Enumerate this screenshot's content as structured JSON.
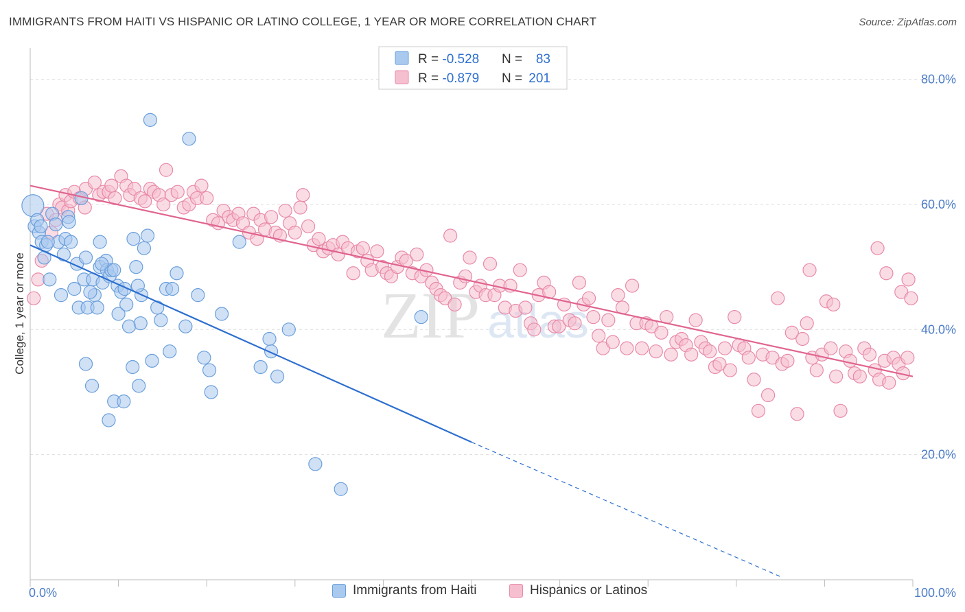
{
  "title": "IMMIGRANTS FROM HAITI VS HISPANIC OR LATINO COLLEGE, 1 YEAR OR MORE CORRELATION CHART",
  "source": "Source: ZipAtlas.com",
  "watermark": {
    "zip": "ZIP",
    "atlas": "atlas"
  },
  "colors": {
    "blue_fill": "#a9c9ee",
    "blue_stroke": "#6a9fdb",
    "blue_line": "#2d6fcf",
    "pink_fill": "#f6bfd0",
    "pink_stroke": "#e88aa8",
    "pink_line": "#e0648f",
    "tick_text": "#4a7bc8",
    "grid": "#dddddd"
  },
  "legend_box": {
    "rows": [
      {
        "r_label": "R = ",
        "r_value": "-0.528",
        "n_label": "N = ",
        "n_value": "83"
      },
      {
        "r_label": "R = ",
        "r_value": "-0.879",
        "n_label": "N = ",
        "n_value": "201"
      }
    ]
  },
  "chart_data": {
    "type": "scatter",
    "xlabel": "",
    "ylabel": "College, 1 year or more",
    "xlim": [
      0,
      100
    ],
    "ylim": [
      0,
      85
    ],
    "x_tick_labels": [
      "0.0%",
      "100.0%"
    ],
    "y_ticks": [
      20,
      40,
      60,
      80
    ],
    "y_tick_labels": [
      "20.0%",
      "40.0%",
      "60.0%",
      "80.0%"
    ],
    "grid": "horizontal dashed",
    "legend": "bottom-center",
    "series": [
      {
        "name": "Immigrants from Haiti",
        "color": "blue",
        "R": -0.528,
        "N": 83,
        "trend": {
          "x0": 0,
          "y0": 53.5,
          "x1": 50,
          "y1": 22.0,
          "dashed_to_x": 85,
          "dashed_to_y": 0.5
        },
        "points": [
          [
            0.3,
            59.8
          ],
          [
            0.5,
            56.5
          ],
          [
            0.8,
            57.5
          ],
          [
            1.0,
            55.5
          ],
          [
            1.3,
            54.0
          ],
          [
            1.6,
            51.5
          ],
          [
            1.8,
            53.5
          ],
          [
            2.2,
            48.0
          ],
          [
            2.5,
            58.5
          ],
          [
            2.9,
            56.8
          ],
          [
            3.2,
            54.0
          ],
          [
            3.5,
            45.5
          ],
          [
            3.8,
            52.0
          ],
          [
            4.0,
            54.5
          ],
          [
            4.3,
            58.0
          ],
          [
            4.4,
            57.2
          ],
          [
            4.6,
            54.0
          ],
          [
            5.0,
            46.5
          ],
          [
            5.3,
            50.5
          ],
          [
            5.5,
            43.5
          ],
          [
            5.8,
            61.0
          ],
          [
            6.1,
            48.0
          ],
          [
            6.3,
            51.5
          ],
          [
            6.5,
            43.5
          ],
          [
            6.3,
            34.5
          ],
          [
            7.0,
            31.0
          ],
          [
            7.1,
            48.0
          ],
          [
            7.3,
            45.5
          ],
          [
            7.6,
            43.5
          ],
          [
            7.9,
            50.0
          ],
          [
            7.9,
            54.0
          ],
          [
            8.2,
            47.5
          ],
          [
            8.6,
            51.0
          ],
          [
            8.7,
            49.5
          ],
          [
            8.9,
            25.5
          ],
          [
            9.0,
            48.5
          ],
          [
            9.2,
            49.5
          ],
          [
            9.5,
            49.5
          ],
          [
            9.5,
            28.5
          ],
          [
            9.9,
            47.0
          ],
          [
            10.0,
            42.5
          ],
          [
            10.3,
            46.0
          ],
          [
            10.6,
            28.5
          ],
          [
            10.7,
            46.5
          ],
          [
            10.9,
            44.0
          ],
          [
            11.2,
            40.5
          ],
          [
            11.6,
            34.0
          ],
          [
            11.7,
            54.5
          ],
          [
            12.0,
            50.0
          ],
          [
            12.3,
            31.0
          ],
          [
            12.5,
            41.0
          ],
          [
            12.6,
            45.5
          ],
          [
            12.9,
            53.0
          ],
          [
            13.3,
            55.0
          ],
          [
            13.6,
            73.5
          ],
          [
            13.8,
            35.0
          ],
          [
            14.4,
            43.5
          ],
          [
            14.8,
            41.5
          ],
          [
            15.4,
            46.5
          ],
          [
            15.8,
            36.5
          ],
          [
            16.1,
            46.5
          ],
          [
            16.6,
            49.0
          ],
          [
            17.6,
            40.5
          ],
          [
            18.0,
            70.5
          ],
          [
            19.0,
            45.5
          ],
          [
            19.7,
            35.5
          ],
          [
            20.3,
            33.5
          ],
          [
            20.5,
            30.0
          ],
          [
            21.7,
            42.5
          ],
          [
            23.7,
            54.0
          ],
          [
            27.1,
            38.5
          ],
          [
            27.3,
            36.5
          ],
          [
            26.1,
            34.0
          ],
          [
            28.0,
            32.5
          ],
          [
            29.3,
            40.0
          ],
          [
            32.3,
            18.5
          ],
          [
            35.2,
            14.5
          ],
          [
            44.3,
            42.0
          ],
          [
            1.2,
            56.5
          ],
          [
            2.0,
            54.0
          ],
          [
            6.8,
            46.0
          ],
          [
            8.1,
            50.5
          ],
          [
            12.2,
            47.0
          ]
        ]
      },
      {
        "name": "Hispanics or Latinos",
        "color": "pink",
        "R": -0.879,
        "N": 201,
        "trend": {
          "x0": 0,
          "y0": 63.0,
          "x1": 100,
          "y1": 32.5
        },
        "points": [
          [
            0.4,
            45.0
          ],
          [
            0.9,
            48.0
          ],
          [
            1.3,
            51.0
          ],
          [
            1.9,
            58.5
          ],
          [
            2.4,
            55.5
          ],
          [
            2.9,
            57.5
          ],
          [
            3.3,
            60.0
          ],
          [
            3.6,
            59.5
          ],
          [
            4.0,
            61.5
          ],
          [
            4.3,
            59.0
          ],
          [
            4.6,
            60.5
          ],
          [
            5.0,
            62.0
          ],
          [
            5.6,
            61.0
          ],
          [
            6.2,
            59.5
          ],
          [
            6.3,
            62.5
          ],
          [
            7.3,
            63.5
          ],
          [
            7.8,
            61.5
          ],
          [
            8.3,
            62.0
          ],
          [
            8.9,
            62.0
          ],
          [
            9.2,
            63.0
          ],
          [
            9.6,
            61.0
          ],
          [
            10.3,
            64.5
          ],
          [
            10.9,
            63.0
          ],
          [
            11.3,
            61.5
          ],
          [
            11.8,
            62.5
          ],
          [
            12.5,
            61.0
          ],
          [
            13.0,
            60.5
          ],
          [
            13.6,
            62.5
          ],
          [
            14.0,
            62.0
          ],
          [
            14.6,
            61.5
          ],
          [
            15.1,
            60.0
          ],
          [
            15.4,
            65.5
          ],
          [
            16.0,
            61.5
          ],
          [
            16.7,
            62.0
          ],
          [
            17.4,
            59.5
          ],
          [
            18.0,
            60.0
          ],
          [
            18.5,
            62.0
          ],
          [
            18.9,
            61.0
          ],
          [
            19.4,
            63.0
          ],
          [
            20.0,
            61.0
          ],
          [
            20.7,
            57.5
          ],
          [
            21.3,
            57.0
          ],
          [
            21.9,
            59.0
          ],
          [
            22.5,
            58.0
          ],
          [
            23.0,
            57.5
          ],
          [
            23.6,
            58.5
          ],
          [
            24.1,
            57.0
          ],
          [
            24.8,
            55.5
          ],
          [
            25.3,
            58.5
          ],
          [
            25.7,
            54.5
          ],
          [
            26.1,
            57.5
          ],
          [
            26.6,
            56.0
          ],
          [
            27.3,
            58.0
          ],
          [
            27.8,
            55.5
          ],
          [
            28.3,
            55.0
          ],
          [
            28.9,
            59.0
          ],
          [
            29.4,
            57.0
          ],
          [
            30.0,
            55.5
          ],
          [
            30.6,
            59.5
          ],
          [
            30.9,
            61.5
          ],
          [
            31.5,
            56.5
          ],
          [
            32.1,
            53.5
          ],
          [
            32.7,
            54.5
          ],
          [
            33.2,
            52.5
          ],
          [
            33.8,
            53.0
          ],
          [
            34.3,
            53.5
          ],
          [
            34.9,
            52.0
          ],
          [
            35.4,
            54.0
          ],
          [
            36.0,
            53.0
          ],
          [
            36.6,
            49.0
          ],
          [
            37.1,
            52.5
          ],
          [
            37.7,
            53.0
          ],
          [
            38.2,
            51.0
          ],
          [
            38.7,
            49.5
          ],
          [
            39.3,
            52.5
          ],
          [
            39.9,
            50.0
          ],
          [
            40.4,
            49.0
          ],
          [
            40.9,
            48.5
          ],
          [
            41.6,
            50.0
          ],
          [
            42.1,
            51.5
          ],
          [
            42.6,
            51.0
          ],
          [
            43.3,
            49.0
          ],
          [
            43.8,
            52.0
          ],
          [
            44.3,
            48.5
          ],
          [
            44.9,
            49.5
          ],
          [
            45.5,
            47.5
          ],
          [
            46.0,
            46.5
          ],
          [
            46.5,
            45.5
          ],
          [
            47.0,
            45.0
          ],
          [
            47.6,
            55.0
          ],
          [
            48.1,
            44.0
          ],
          [
            48.7,
            47.5
          ],
          [
            49.3,
            48.5
          ],
          [
            49.8,
            51.5
          ],
          [
            50.5,
            46.0
          ],
          [
            51.0,
            47.0
          ],
          [
            51.6,
            45.5
          ],
          [
            52.1,
            50.5
          ],
          [
            52.6,
            45.5
          ],
          [
            53.2,
            47.0
          ],
          [
            53.8,
            43.5
          ],
          [
            54.4,
            47.0
          ],
          [
            55.0,
            43.0
          ],
          [
            55.5,
            49.5
          ],
          [
            56.1,
            43.5
          ],
          [
            56.7,
            41.0
          ],
          [
            57.1,
            40.0
          ],
          [
            57.6,
            45.5
          ],
          [
            58.2,
            47.5
          ],
          [
            58.8,
            46.0
          ],
          [
            59.4,
            40.5
          ],
          [
            59.9,
            40.5
          ],
          [
            60.5,
            44.0
          ],
          [
            61.1,
            41.5
          ],
          [
            61.7,
            41.0
          ],
          [
            62.2,
            47.5
          ],
          [
            62.7,
            44.0
          ],
          [
            63.3,
            45.0
          ],
          [
            63.8,
            42.0
          ],
          [
            64.4,
            39.0
          ],
          [
            64.9,
            37.0
          ],
          [
            65.5,
            41.5
          ],
          [
            66.0,
            38.0
          ],
          [
            66.6,
            45.5
          ],
          [
            67.1,
            43.5
          ],
          [
            67.6,
            37.0
          ],
          [
            68.2,
            47.0
          ],
          [
            68.7,
            41.0
          ],
          [
            69.3,
            37.0
          ],
          [
            69.8,
            41.0
          ],
          [
            70.4,
            40.5
          ],
          [
            70.9,
            36.5
          ],
          [
            71.5,
            39.5
          ],
          [
            72.1,
            42.0
          ],
          [
            72.6,
            36.0
          ],
          [
            73.2,
            38.0
          ],
          [
            73.8,
            38.5
          ],
          [
            74.3,
            37.5
          ],
          [
            74.9,
            36.0
          ],
          [
            75.4,
            41.5
          ],
          [
            76.0,
            38.0
          ],
          [
            76.5,
            37.0
          ],
          [
            77.0,
            36.5
          ],
          [
            77.6,
            34.0
          ],
          [
            78.1,
            34.5
          ],
          [
            78.7,
            37.0
          ],
          [
            79.3,
            33.5
          ],
          [
            79.8,
            42.0
          ],
          [
            80.3,
            37.5
          ],
          [
            80.9,
            37.0
          ],
          [
            81.4,
            35.5
          ],
          [
            82.0,
            32.0
          ],
          [
            82.5,
            27.0
          ],
          [
            83.0,
            36.0
          ],
          [
            83.6,
            29.5
          ],
          [
            84.1,
            35.5
          ],
          [
            84.7,
            45.0
          ],
          [
            85.2,
            34.5
          ],
          [
            85.8,
            35.0
          ],
          [
            86.3,
            39.5
          ],
          [
            86.9,
            26.5
          ],
          [
            87.5,
            38.5
          ],
          [
            88.0,
            41.0
          ],
          [
            88.6,
            35.5
          ],
          [
            89.1,
            33.5
          ],
          [
            89.7,
            36.0
          ],
          [
            90.2,
            44.5
          ],
          [
            90.7,
            37.0
          ],
          [
            91.3,
            32.5
          ],
          [
            91.8,
            27.0
          ],
          [
            92.4,
            36.5
          ],
          [
            92.9,
            35.0
          ],
          [
            93.4,
            33.0
          ],
          [
            94.0,
            32.5
          ],
          [
            94.5,
            37.0
          ],
          [
            95.1,
            36.0
          ],
          [
            95.7,
            33.5
          ],
          [
            96.2,
            32.0
          ],
          [
            96.8,
            35.0
          ],
          [
            97.3,
            31.5
          ],
          [
            97.8,
            35.5
          ],
          [
            98.4,
            34.5
          ],
          [
            98.9,
            33.0
          ],
          [
            99.4,
            35.5
          ],
          [
            99.5,
            48.0
          ],
          [
            98.7,
            46.0
          ],
          [
            99.8,
            45.0
          ],
          [
            97.0,
            49.0
          ],
          [
            96.0,
            53.0
          ],
          [
            88.3,
            49.5
          ],
          [
            91.0,
            44.0
          ]
        ]
      }
    ]
  },
  "bottom_legend": [
    {
      "label": "Immigrants from Haiti",
      "color": "blue"
    },
    {
      "label": "Hispanics or Latinos",
      "color": "pink"
    }
  ]
}
